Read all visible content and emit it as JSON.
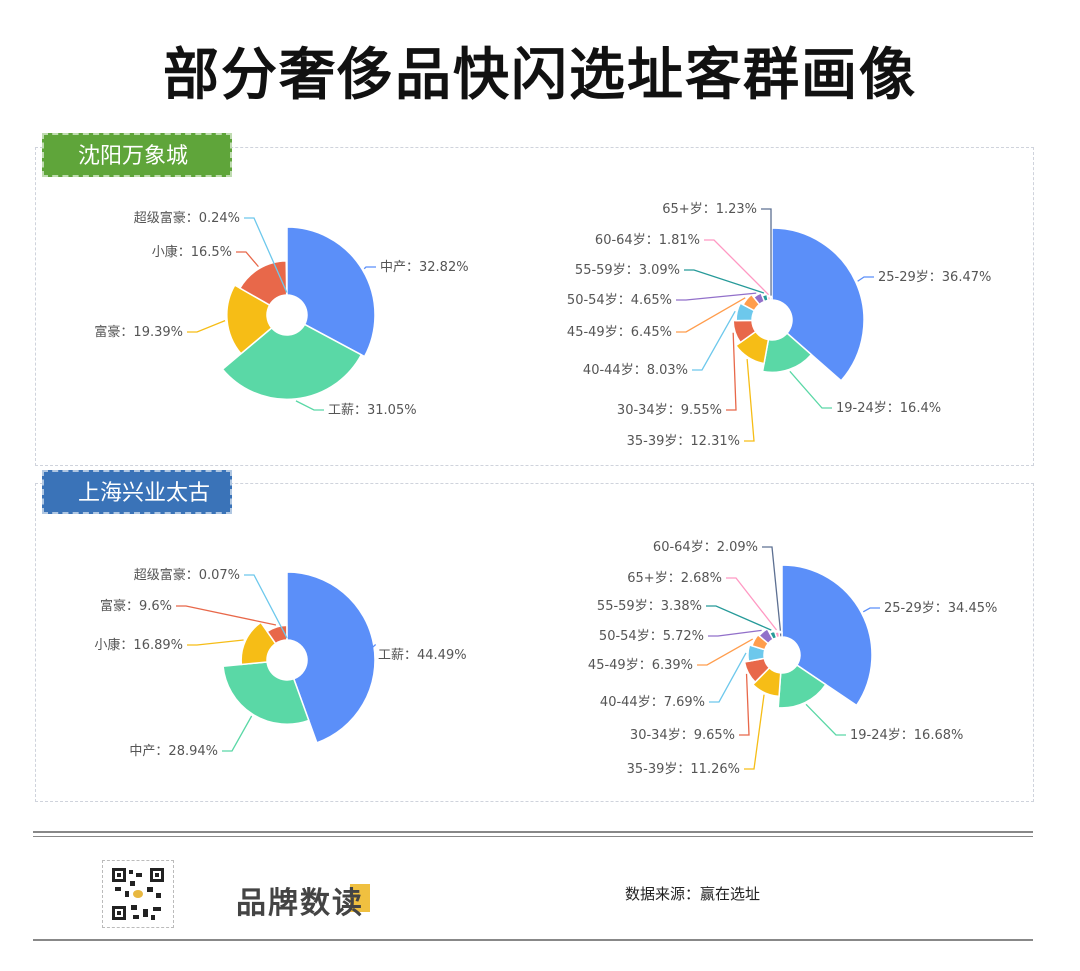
{
  "title": "部分奢侈品快闪选址客群画像",
  "sections": [
    {
      "name": "沈阳万象城",
      "tag_color": "#5fa53a"
    },
    {
      "name": "上海兴业太古汇",
      "tag_color": "#3a73b8"
    }
  ],
  "chart_data": [
    {
      "type": "pie",
      "rose": true,
      "section": "沈阳万象城",
      "categories": [
        "中产",
        "工薪",
        "富豪",
        "小康",
        "超级富豪"
      ],
      "values": [
        32.82,
        31.05,
        19.39,
        16.5,
        0.24
      ],
      "labels": [
        "中产：32.82%",
        "工薪：31.05%",
        "富豪：19.39%",
        "小康：16.5%",
        "超级富豪：0.24%"
      ],
      "colors": [
        "#5b8ff9",
        "#5ad8a6",
        "#f6bd16",
        "#e8684a",
        "#6dc8ec"
      ]
    },
    {
      "type": "pie",
      "rose": true,
      "section": "沈阳万象城",
      "categories": [
        "25-29岁",
        "19-24岁",
        "35-39岁",
        "30-34岁",
        "40-44岁",
        "45-49岁",
        "50-54岁",
        "55-59岁",
        "60-64岁",
        "65+岁"
      ],
      "values": [
        36.47,
        16.4,
        12.31,
        9.55,
        8.03,
        6.45,
        4.65,
        3.09,
        1.81,
        1.23
      ],
      "labels": [
        "25-29岁：36.47%",
        "19-24岁：16.4%",
        "35-39岁：12.31%",
        "30-34岁：9.55%",
        "40-44岁：8.03%",
        "45-49岁：6.45%",
        "50-54岁：4.65%",
        "55-59岁：3.09%",
        "60-64岁：1.81%",
        "65+岁：1.23%"
      ],
      "colors": [
        "#5b8ff9",
        "#5ad8a6",
        "#f6bd16",
        "#e8684a",
        "#6dc8ec",
        "#ff9d4d",
        "#9270ca",
        "#269a99",
        "#ff99c3",
        "#5d7092"
      ]
    },
    {
      "type": "pie",
      "rose": true,
      "section": "上海兴业太古汇",
      "categories": [
        "工薪",
        "中产",
        "小康",
        "富豪",
        "超级富豪"
      ],
      "values": [
        44.49,
        28.94,
        16.89,
        9.6,
        0.07
      ],
      "labels": [
        "工薪：44.49%",
        "中产：28.94%",
        "小康：16.89%",
        "富豪：9.6%",
        "超级富豪：0.07%"
      ],
      "colors": [
        "#5b8ff9",
        "#5ad8a6",
        "#f6bd16",
        "#e8684a",
        "#6dc8ec"
      ]
    },
    {
      "type": "pie",
      "rose": true,
      "section": "上海兴业太古汇",
      "categories": [
        "25-29岁",
        "19-24岁",
        "35-39岁",
        "30-34岁",
        "40-44岁",
        "45-49岁",
        "50-54岁",
        "55-59岁",
        "65+岁",
        "60-64岁"
      ],
      "values": [
        34.45,
        16.68,
        11.26,
        9.65,
        7.69,
        6.39,
        5.72,
        3.38,
        2.68,
        2.09
      ],
      "labels": [
        "25-29岁：34.45%",
        "19-24岁：16.68%",
        "35-39岁：11.26%",
        "30-34岁：9.65%",
        "40-44岁：7.69%",
        "45-49岁：6.39%",
        "50-54岁：5.72%",
        "55-59岁：3.38%",
        "65+岁：2.68%",
        "60-64岁：2.09%"
      ],
      "colors": [
        "#5b8ff9",
        "#5ad8a6",
        "#f6bd16",
        "#e8684a",
        "#6dc8ec",
        "#ff9d4d",
        "#9270ca",
        "#269a99",
        "#ff99c3",
        "#5d7092"
      ]
    }
  ],
  "footer": {
    "brand": "品牌数读",
    "source": "数据来源：赢在选址"
  }
}
